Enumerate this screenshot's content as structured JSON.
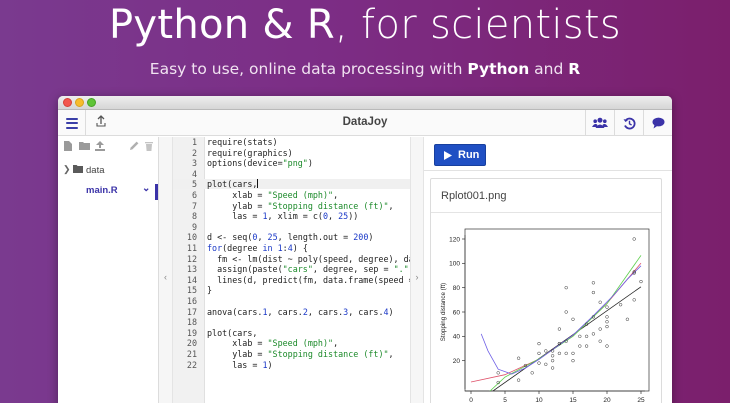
{
  "hero": {
    "title_a": "Python & R",
    "title_b": ", for scientists",
    "subtitle_a": "Easy to use, online data processing with ",
    "subtitle_python": "Python",
    "subtitle_and": " and ",
    "subtitle_r": "R"
  },
  "app": {
    "name": "DataJoy",
    "toolbar_icons": [
      "menu-icon",
      "share-icon",
      "users-icon",
      "history-icon",
      "chat-icon"
    ]
  },
  "sidebar": {
    "folder": "data",
    "file": "main.R"
  },
  "editor": {
    "active_line": 5,
    "lines": [
      "require(stats)",
      "require(graphics)",
      "options(device=\"png\")",
      "",
      "plot(cars,",
      "     xlab = \"Speed (mph)\",",
      "     ylab = \"Stopping distance (ft)\",",
      "     las = 1, xlim = c(0, 25))",
      "",
      "d <- seq(0, 25, length.out = 200)",
      "for(degree in 1:4) {",
      "  fm <- lm(dist ~ poly(speed, degree), data = cars)",
      "  assign(paste(\"cars\", degree, sep = \".\"), fm)",
      "  lines(d, predict(fm, data.frame(speed = d)), col = degree)",
      "}",
      "",
      "anova(cars.1, cars.2, cars.3, cars.4)",
      "",
      "plot(cars,",
      "     xlab = \"Speed (mph)\",",
      "     ylab = \"Stopping distance (ft)\",",
      "     las = 1)"
    ]
  },
  "output": {
    "run_label": "Run",
    "plot_filename": "Rplot001.png"
  },
  "colors": {
    "accent": "#1f4fc3",
    "nav_accent": "#3b33a8",
    "hero_bg": "#7c2d85"
  },
  "chart_data": {
    "type": "scatter",
    "title": "",
    "xlabel": "",
    "ylabel": "Stopping distance (ft)",
    "xlim": [
      0,
      25
    ],
    "ylim": [
      0,
      120
    ],
    "x_ticks": [
      "0",
      "5",
      "10",
      "15",
      "20",
      "25"
    ],
    "y_ticks": [
      "20",
      "40",
      "60",
      "80",
      "100",
      "120"
    ],
    "points": [
      [
        4,
        2
      ],
      [
        4,
        10
      ],
      [
        7,
        4
      ],
      [
        7,
        22
      ],
      [
        8,
        16
      ],
      [
        9,
        10
      ],
      [
        10,
        18
      ],
      [
        10,
        26
      ],
      [
        10,
        34
      ],
      [
        11,
        17
      ],
      [
        11,
        28
      ],
      [
        12,
        14
      ],
      [
        12,
        20
      ],
      [
        12,
        24
      ],
      [
        12,
        28
      ],
      [
        13,
        26
      ],
      [
        13,
        34
      ],
      [
        13,
        34
      ],
      [
        13,
        46
      ],
      [
        14,
        26
      ],
      [
        14,
        36
      ],
      [
        14,
        60
      ],
      [
        14,
        80
      ],
      [
        15,
        20
      ],
      [
        15,
        26
      ],
      [
        15,
        54
      ],
      [
        16,
        32
      ],
      [
        16,
        40
      ],
      [
        17,
        32
      ],
      [
        17,
        40
      ],
      [
        17,
        50
      ],
      [
        18,
        42
      ],
      [
        18,
        56
      ],
      [
        18,
        76
      ],
      [
        18,
        84
      ],
      [
        19,
        36
      ],
      [
        19,
        46
      ],
      [
        19,
        68
      ],
      [
        20,
        32
      ],
      [
        20,
        48
      ],
      [
        20,
        52
      ],
      [
        20,
        56
      ],
      [
        20,
        64
      ],
      [
        22,
        66
      ],
      [
        23,
        54
      ],
      [
        24,
        70
      ],
      [
        24,
        92
      ],
      [
        24,
        93
      ],
      [
        24,
        120
      ],
      [
        25,
        85
      ]
    ],
    "fit_lines": [
      {
        "color": "#222222",
        "values": [
          [
            0,
            -17.6
          ],
          [
            25,
            80.7
          ]
        ]
      },
      {
        "color": "#df536b",
        "values": [
          [
            0,
            2.5
          ],
          [
            5,
            8.5
          ],
          [
            10,
            21.3
          ],
          [
            15,
            40.8
          ],
          [
            20,
            67.1
          ],
          [
            25,
            100.2
          ]
        ]
      },
      {
        "color": "#61d04f",
        "values": [
          [
            0,
            -19.5
          ],
          [
            5,
            6.5
          ],
          [
            10,
            21.5
          ],
          [
            15,
            40.0
          ],
          [
            20,
            66.8
          ],
          [
            25,
            106.5
          ]
        ]
      },
      {
        "color": "#6f60e6",
        "values": [
          [
            1.5,
            42
          ],
          [
            2.5,
            28
          ],
          [
            4,
            13
          ],
          [
            6,
            9
          ],
          [
            8,
            14
          ],
          [
            10,
            21
          ],
          [
            12,
            29
          ],
          [
            15,
            41
          ],
          [
            18,
            57
          ],
          [
            21,
            74
          ],
          [
            23,
            87
          ],
          [
            25,
            98
          ]
        ]
      }
    ]
  }
}
